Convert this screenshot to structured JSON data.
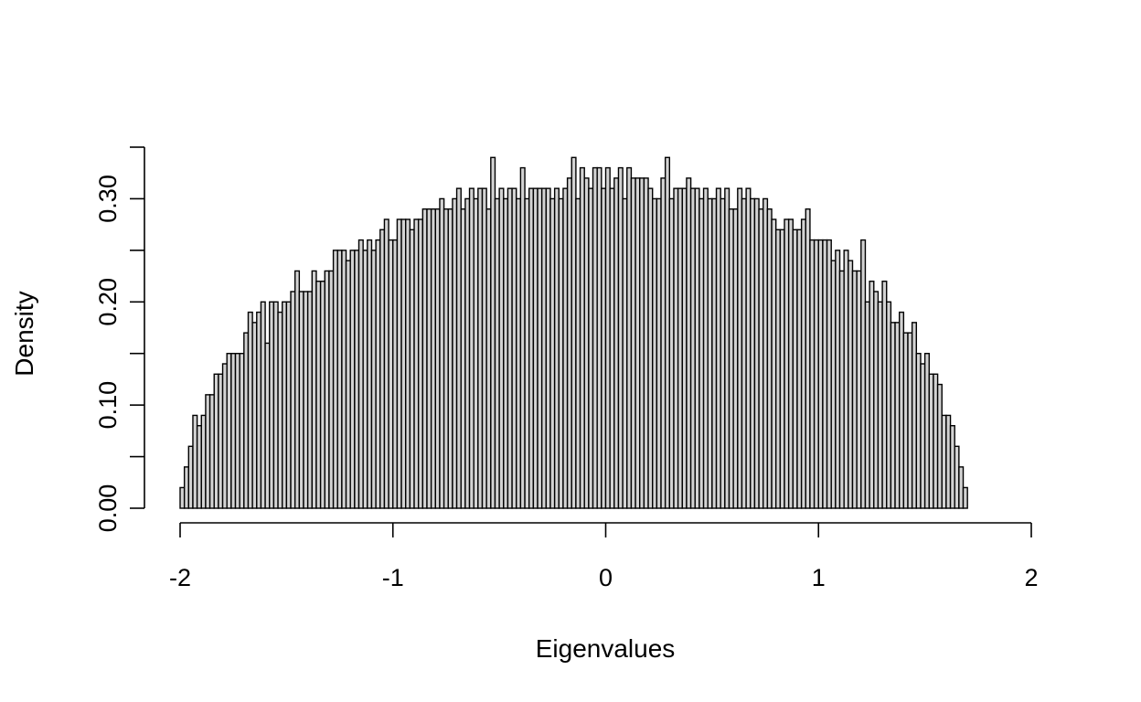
{
  "chart_data": {
    "type": "bar",
    "title": "",
    "xlabel": "Eigenvalues",
    "ylabel": "Density",
    "xlim": [
      -2.02,
      2.02
    ],
    "ylim": [
      0,
      0.35
    ],
    "x_ticks": [
      -2,
      -1,
      0,
      1,
      2
    ],
    "x_tick_labels": [
      "-2",
      "-1",
      "0",
      "1",
      "2"
    ],
    "y_ticks": [
      0.0,
      0.05,
      0.1,
      0.15,
      0.2,
      0.25,
      0.3,
      0.35
    ],
    "y_tick_labels": [
      "0.00",
      "",
      "0.10",
      "",
      "0.20",
      "",
      "0.30",
      ""
    ],
    "grid": false,
    "bin_start": -2.0,
    "bin_width": 0.02,
    "bar_fill": "#d3d3d3",
    "bar_stroke": "#000000",
    "values": [
      0.02,
      0.04,
      0.06,
      0.09,
      0.08,
      0.09,
      0.11,
      0.11,
      0.13,
      0.13,
      0.14,
      0.15,
      0.15,
      0.15,
      0.15,
      0.17,
      0.19,
      0.18,
      0.19,
      0.2,
      0.16,
      0.2,
      0.2,
      0.19,
      0.2,
      0.2,
      0.21,
      0.23,
      0.21,
      0.21,
      0.21,
      0.23,
      0.22,
      0.22,
      0.23,
      0.23,
      0.25,
      0.25,
      0.25,
      0.24,
      0.25,
      0.25,
      0.26,
      0.25,
      0.26,
      0.25,
      0.26,
      0.27,
      0.28,
      0.26,
      0.26,
      0.28,
      0.28,
      0.28,
      0.27,
      0.28,
      0.28,
      0.29,
      0.29,
      0.29,
      0.29,
      0.3,
      0.29,
      0.29,
      0.3,
      0.31,
      0.29,
      0.3,
      0.31,
      0.3,
      0.31,
      0.31,
      0.29,
      0.34,
      0.3,
      0.31,
      0.3,
      0.31,
      0.31,
      0.3,
      0.33,
      0.3,
      0.31,
      0.31,
      0.31,
      0.31,
      0.31,
      0.3,
      0.31,
      0.3,
      0.31,
      0.32,
      0.34,
      0.3,
      0.33,
      0.32,
      0.31,
      0.33,
      0.33,
      0.31,
      0.33,
      0.31,
      0.32,
      0.33,
      0.3,
      0.33,
      0.32,
      0.32,
      0.32,
      0.32,
      0.31,
      0.3,
      0.3,
      0.32,
      0.34,
      0.3,
      0.31,
      0.31,
      0.31,
      0.32,
      0.31,
      0.31,
      0.3,
      0.31,
      0.3,
      0.3,
      0.31,
      0.3,
      0.31,
      0.29,
      0.29,
      0.31,
      0.3,
      0.31,
      0.3,
      0.3,
      0.29,
      0.3,
      0.29,
      0.28,
      0.27,
      0.27,
      0.28,
      0.28,
      0.27,
      0.27,
      0.28,
      0.29,
      0.26,
      0.26,
      0.26,
      0.26,
      0.26,
      0.24,
      0.25,
      0.23,
      0.25,
      0.24,
      0.23,
      0.23,
      0.26,
      0.2,
      0.22,
      0.21,
      0.2,
      0.22,
      0.2,
      0.18,
      0.18,
      0.19,
      0.17,
      0.17,
      0.18,
      0.15,
      0.14,
      0.15,
      0.13,
      0.13,
      0.12,
      0.09,
      0.09,
      0.08,
      0.06,
      0.04,
      0.02
    ]
  }
}
